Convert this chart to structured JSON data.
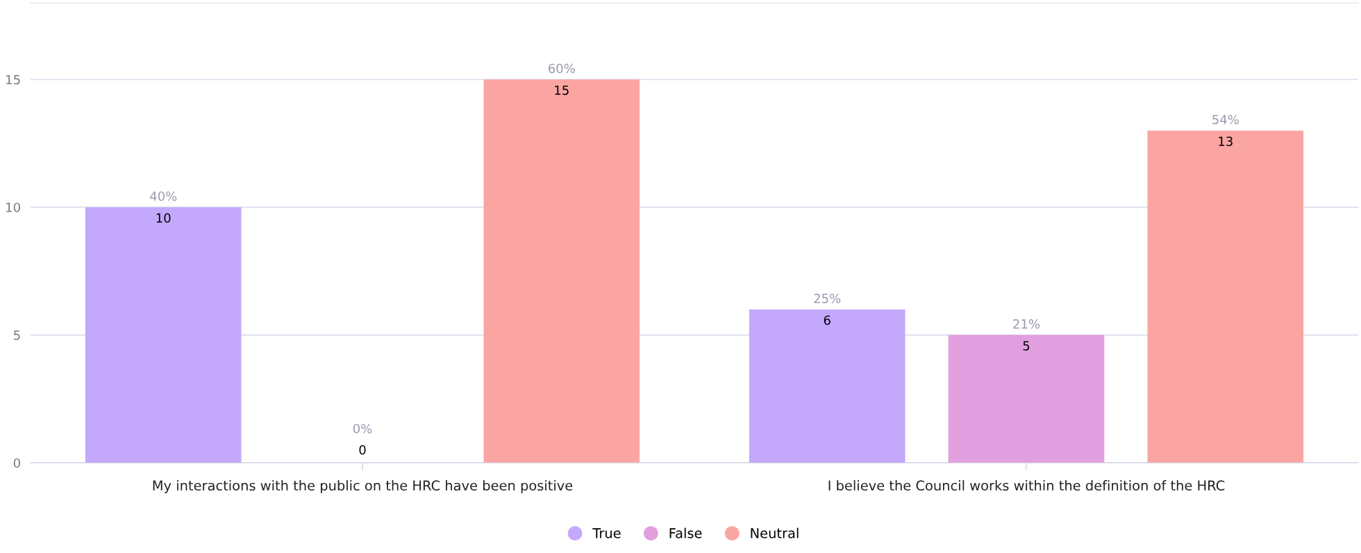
{
  "chart_data": {
    "type": "bar",
    "categories": [
      "My interactions with the public on the HRC have been positive",
      "I believe the Council works within the definition of the HRC"
    ],
    "series": [
      {
        "name": "True",
        "color": "#c4a8fc",
        "values": [
          10,
          6
        ]
      },
      {
        "name": "False",
        "color": "#e29fe0",
        "values": [
          0,
          5
        ]
      },
      {
        "name": "Neutral",
        "color": "#fba5a3",
        "values": [
          15,
          13
        ]
      }
    ],
    "data_labels": true,
    "annotations": [
      "40%",
      "0%",
      "60%",
      "25%",
      "21%",
      "54%"
    ],
    "ylim": [
      0,
      18
    ],
    "yticks": [
      0,
      5,
      10,
      15
    ],
    "grid": "y",
    "legend": "bottom"
  }
}
